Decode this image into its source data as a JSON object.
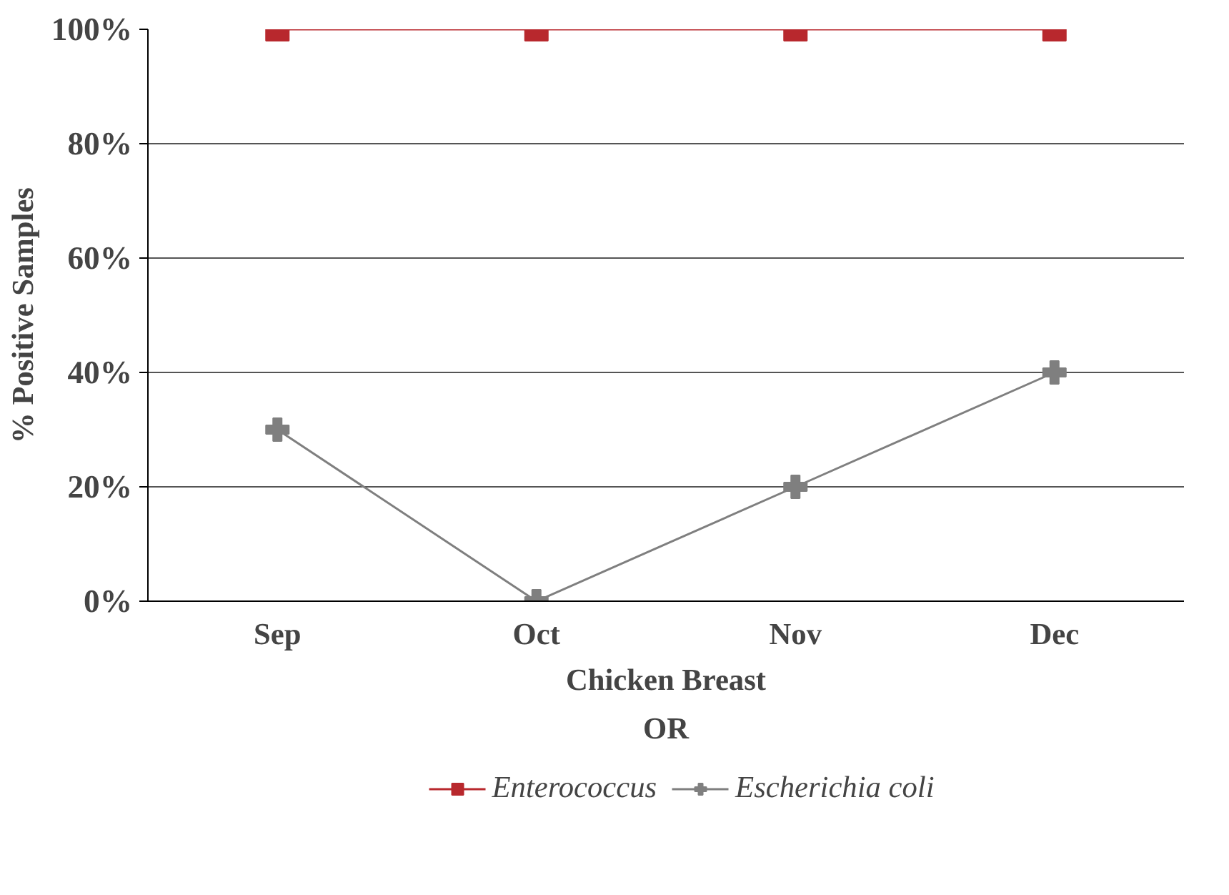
{
  "chart_data": {
    "type": "line",
    "ylabel": "% Positive Samples",
    "xlabel": "Chicken Breast",
    "annotations": [
      "OR"
    ],
    "categories": [
      "Sep",
      "Oct",
      "Nov",
      "Dec"
    ],
    "series": [
      {
        "name": "Enterococcus",
        "color": "#b8282d",
        "values": [
          100,
          100,
          100,
          100
        ],
        "marker": "square"
      },
      {
        "name": "Escherichia coli",
        "color": "#7f7f7f",
        "values": [
          30,
          0,
          20,
          40
        ],
        "marker": "cross"
      }
    ],
    "ylim": [
      0,
      100
    ],
    "yticks": [
      {
        "value": 0,
        "label": "0%"
      },
      {
        "value": 20,
        "label": "20%"
      },
      {
        "value": 40,
        "label": "40%"
      },
      {
        "value": 60,
        "label": "60%"
      },
      {
        "value": 80,
        "label": "80%"
      },
      {
        "value": 100,
        "label": "100%"
      }
    ],
    "grid": "y",
    "legend": "bottom",
    "line_style": "solid"
  }
}
